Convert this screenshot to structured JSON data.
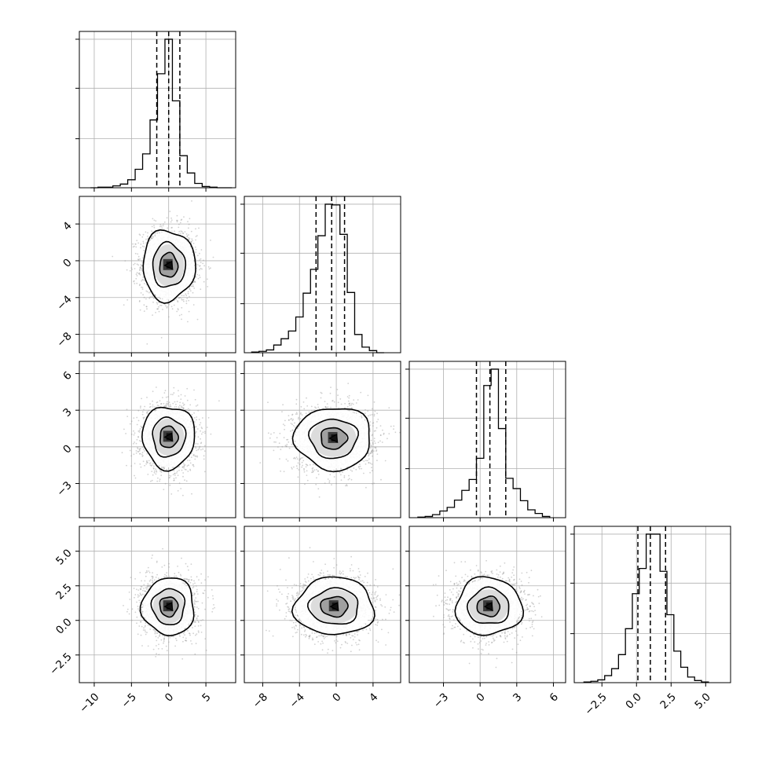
{
  "chart_data": {
    "type": "corner",
    "title": "",
    "variables": [
      {
        "label": "",
        "range": [
          -12,
          9
        ],
        "ticks": [
          -10,
          -5,
          0,
          5
        ],
        "tick_labels": [
          "−10",
          "−5",
          "0",
          "5"
        ],
        "quantiles": [
          -1.6,
          0.0,
          1.5
        ]
      },
      {
        "label": "",
        "range": [
          -10,
          7
        ],
        "ticks": [
          -8,
          -4,
          0,
          4
        ],
        "tick_labels": [
          "−8",
          "−4",
          "0",
          "4"
        ],
        "quantiles": [
          -2.2,
          -0.5,
          0.9
        ]
      },
      {
        "label": "",
        "range": [
          -5.8,
          7
        ],
        "ticks": [
          -3,
          0,
          3,
          6
        ],
        "tick_labels": [
          "−3",
          "0",
          "3",
          "6"
        ],
        "quantiles": [
          -0.3,
          0.8,
          2.1
        ]
      },
      {
        "label": "",
        "range": [
          -4.5,
          6.8
        ],
        "ticks": [
          -2.5,
          0,
          2.5,
          5
        ],
        "tick_labels": [
          "−2.5",
          "0.0",
          "2.5",
          "5.0"
        ],
        "quantiles": [
          0.1,
          1.0,
          2.1
        ]
      }
    ],
    "histograms": [
      {
        "variable": 0,
        "bins": [
          -10.5,
          -9.5,
          -8.5,
          -7.5,
          -6.5,
          -5.5,
          -4.5,
          -3.5,
          -2.5,
          -1.5,
          -0.5,
          0.5,
          1.5,
          2.5,
          3.5,
          4.5,
          5.5,
          6.5,
          7.5,
          8.5
        ],
        "counts": [
          0,
          1,
          1,
          3,
          6,
          13,
          30,
          55,
          110,
          185,
          241,
          141,
          52,
          24,
          7,
          2,
          1,
          0,
          0
        ]
      },
      {
        "variable": 1,
        "bins": [
          -9.2,
          -8.4,
          -7.6,
          -6.8,
          -6.0,
          -5.2,
          -4.4,
          -3.6,
          -2.8,
          -2.0,
          -1.2,
          -0.4,
          0.4,
          1.2,
          2.0,
          2.8,
          3.6,
          4.4,
          5.2
        ],
        "counts": [
          1,
          2,
          4,
          11,
          20,
          31,
          51,
          85,
          119,
          167,
          212,
          211,
          169,
          86,
          26,
          8,
          3,
          0
        ]
      },
      {
        "variable": 2,
        "bins": [
          -5.1,
          -4.5,
          -3.9,
          -3.3,
          -2.7,
          -2.1,
          -1.5,
          -0.9,
          -0.3,
          0.3,
          0.9,
          1.5,
          2.1,
          2.7,
          3.3,
          3.9,
          4.5,
          5.1,
          5.7
        ],
        "counts": [
          1,
          2,
          5,
          11,
          17,
          29,
          45,
          63,
          98,
          218,
          245,
          147,
          65,
          48,
          28,
          13,
          7,
          2
        ]
      },
      {
        "variable": 3,
        "bins": [
          -3.8,
          -3.3,
          -2.8,
          -2.3,
          -1.8,
          -1.3,
          -0.8,
          -0.3,
          0.2,
          0.7,
          1.2,
          1.7,
          2.2,
          2.7,
          3.2,
          3.7,
          4.2,
          4.7,
          5.2
        ],
        "counts": [
          1,
          2,
          4,
          10,
          20,
          40,
          77,
          127,
          163,
          212,
          212,
          159,
          97,
          45,
          22,
          8,
          3,
          1
        ]
      }
    ],
    "pairs": [
      {
        "x": 0,
        "y": 1,
        "center": [
          0.0,
          -0.5
        ],
        "spread": [
          2.2,
          2.4
        ],
        "n_points": 1800,
        "contour_levels": [
          0.5,
          1.0,
          1.7
        ]
      },
      {
        "x": 0,
        "y": 2,
        "center": [
          0.0,
          0.8
        ],
        "spread": [
          2.2,
          1.6
        ],
        "n_points": 1800,
        "contour_levels": [
          0.5,
          1.0,
          1.7
        ]
      },
      {
        "x": 1,
        "y": 2,
        "center": [
          -0.3,
          0.7
        ],
        "spread": [
          2.6,
          1.6
        ],
        "n_points": 1800,
        "contour_levels": [
          0.5,
          1.0,
          1.7
        ]
      },
      {
        "x": 0,
        "y": 3,
        "center": [
          0.0,
          1.0
        ],
        "spread": [
          2.2,
          1.3
        ],
        "n_points": 1800,
        "contour_levels": [
          0.5,
          1.0,
          1.7
        ]
      },
      {
        "x": 1,
        "y": 3,
        "center": [
          -0.2,
          1.0
        ],
        "spread": [
          2.7,
          1.3
        ],
        "n_points": 1800,
        "contour_levels": [
          0.5,
          1.0,
          1.7
        ]
      },
      {
        "x": 2,
        "y": 3,
        "center": [
          0.7,
          1.0
        ],
        "spread": [
          1.7,
          1.3
        ],
        "n_points": 1800,
        "contour_levels": [
          0.5,
          1.0,
          1.7
        ]
      }
    ],
    "grid": true,
    "colors": {
      "line": "#000000",
      "grid": "#b0b0b0",
      "scatter": "#9a9a9a"
    }
  }
}
